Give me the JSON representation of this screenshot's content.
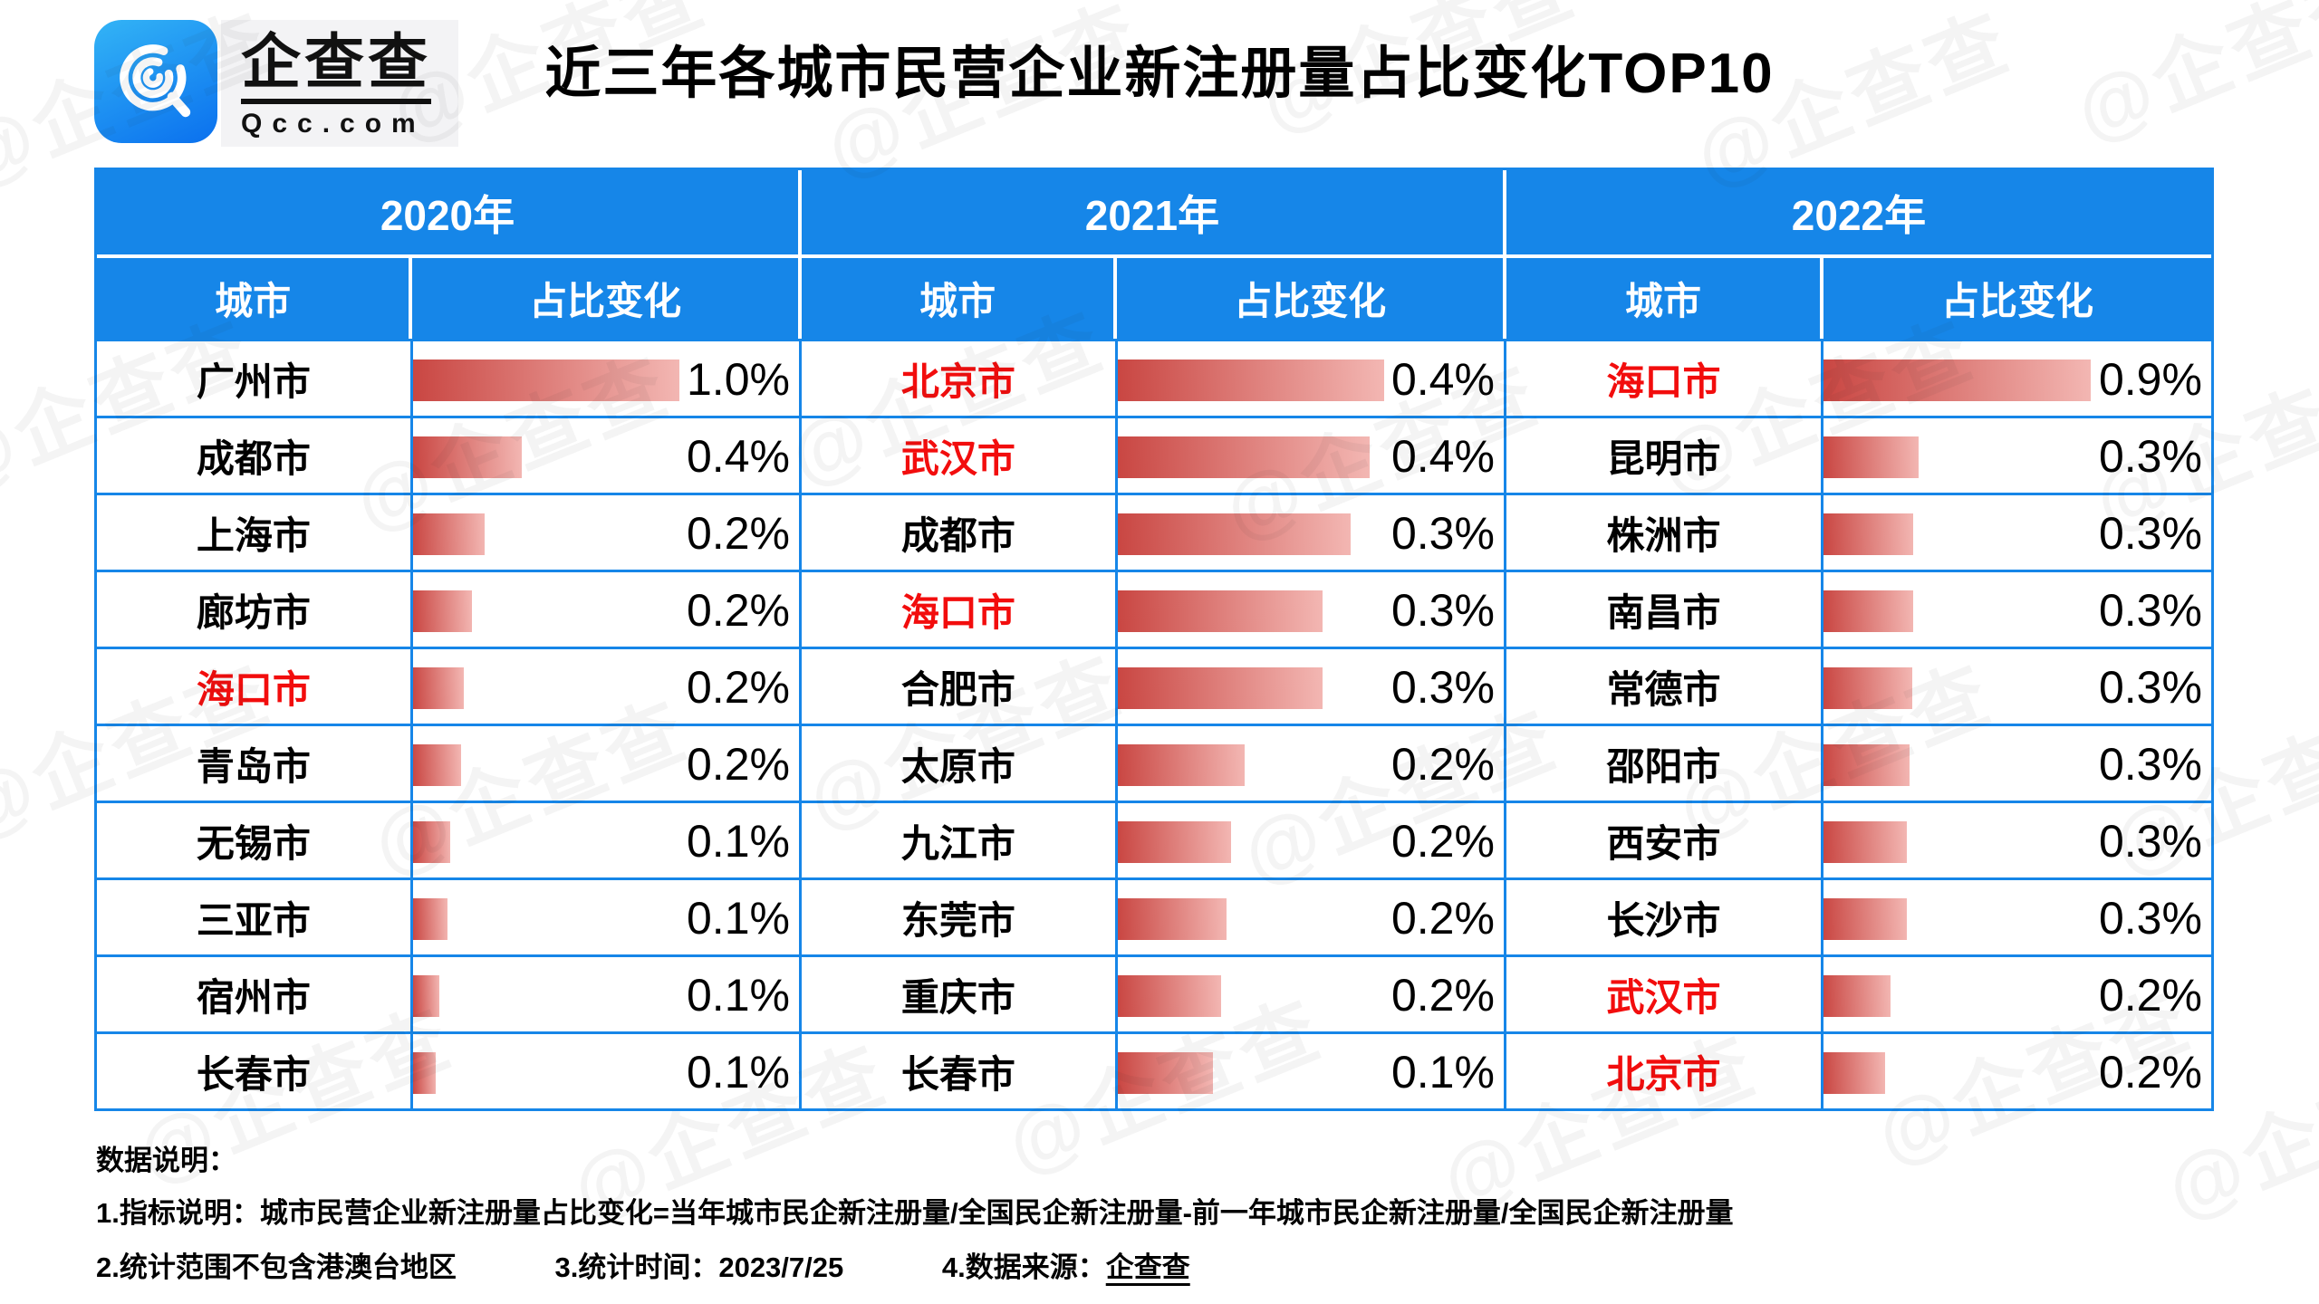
{
  "title": "近三年各城市民营企业新注册量占比变化TOP10",
  "brand": {
    "name": "企查查",
    "domain": "Qcc.com"
  },
  "watermark": {
    "text": "@企查查"
  },
  "colors": {
    "header_blue": "#1686e8",
    "bar_gradient_start": "#c94642",
    "bar_gradient_end": "#f3b7b3",
    "highlight_red": "#f20d0d"
  },
  "table": {
    "sub_headers": [
      "城市",
      "占比变化"
    ],
    "groups": [
      {
        "year": "2020年",
        "rows": [
          {
            "city": "广州市",
            "value": "1.0%",
            "red": false,
            "bar": 69
          },
          {
            "city": "成都市",
            "value": "0.4%",
            "red": false,
            "bar": 28.3
          },
          {
            "city": "上海市",
            "value": "0.2%",
            "red": false,
            "bar": 18.6
          },
          {
            "city": "廊坊市",
            "value": "0.2%",
            "red": false,
            "bar": 15.2
          },
          {
            "city": "海口市",
            "value": "0.2%",
            "red": true,
            "bar": 13.1
          },
          {
            "city": "青岛市",
            "value": "0.2%",
            "red": false,
            "bar": 12.4
          },
          {
            "city": "无锡市",
            "value": "0.1%",
            "red": false,
            "bar": 9.7
          },
          {
            "city": "三亚市",
            "value": "0.1%",
            "red": false,
            "bar": 9.0
          },
          {
            "city": "宿州市",
            "value": "0.1%",
            "red": false,
            "bar": 6.9
          },
          {
            "city": "长春市",
            "value": "0.1%",
            "red": false,
            "bar": 5.9
          }
        ]
      },
      {
        "year": "2021年",
        "rows": [
          {
            "city": "北京市",
            "value": "0.4%",
            "red": true,
            "bar": 69
          },
          {
            "city": "武汉市",
            "value": "0.4%",
            "red": true,
            "bar": 65.2
          },
          {
            "city": "成都市",
            "value": "0.3%",
            "red": false,
            "bar": 60.4
          },
          {
            "city": "海口市",
            "value": "0.3%",
            "red": true,
            "bar": 53.1
          },
          {
            "city": "合肥市",
            "value": "0.3%",
            "red": false,
            "bar": 53.1
          },
          {
            "city": "太原市",
            "value": "0.2%",
            "red": false,
            "bar": 32.8
          },
          {
            "city": "九江市",
            "value": "0.2%",
            "red": false,
            "bar": 29.3
          },
          {
            "city": "东莞市",
            "value": "0.2%",
            "red": false,
            "bar": 28.3
          },
          {
            "city": "重庆市",
            "value": "0.2%",
            "red": false,
            "bar": 26.9
          },
          {
            "city": "长春市",
            "value": "0.1%",
            "red": false,
            "bar": 24.8
          }
        ]
      },
      {
        "year": "2022年",
        "rows": [
          {
            "city": "海口市",
            "value": "0.9%",
            "red": true,
            "bar": 69
          },
          {
            "city": "昆明市",
            "value": "0.3%",
            "red": false,
            "bar": 24.5
          },
          {
            "city": "株洲市",
            "value": "0.3%",
            "red": false,
            "bar": 23.1
          },
          {
            "city": "南昌市",
            "value": "0.3%",
            "red": false,
            "bar": 23.1
          },
          {
            "city": "常德市",
            "value": "0.3%",
            "red": false,
            "bar": 22.8
          },
          {
            "city": "邵阳市",
            "value": "0.3%",
            "red": false,
            "bar": 22.1
          },
          {
            "city": "西安市",
            "value": "0.3%",
            "red": false,
            "bar": 21.4
          },
          {
            "city": "长沙市",
            "value": "0.3%",
            "red": false,
            "bar": 21.4
          },
          {
            "city": "武汉市",
            "value": "0.2%",
            "red": true,
            "bar": 17.3
          },
          {
            "city": "北京市",
            "value": "0.2%",
            "red": true,
            "bar": 15.9
          }
        ]
      }
    ]
  },
  "notes": {
    "heading": "数据说明：",
    "line1": "1.指标说明：城市民营企业新注册量占比变化=当年城市民企新注册量/全国民企新注册量-前一年城市民企新注册量/全国民企新注册量",
    "note2": "2.统计范围不包含港澳台地区",
    "note3": "3.统计时间：2023/7/25",
    "note4_prefix": "4.数据来源：",
    "note4_source": "企查查"
  },
  "chart_data": {
    "type": "bar",
    "title": "近三年各城市民营企业新注册量占比变化TOP10",
    "unit": "%",
    "ylabel": "占比变化",
    "series": [
      {
        "name": "2020年",
        "categories": [
          "广州市",
          "成都市",
          "上海市",
          "廊坊市",
          "海口市",
          "青岛市",
          "无锡市",
          "三亚市",
          "宿州市",
          "长春市"
        ],
        "values": [
          1.0,
          0.4,
          0.2,
          0.2,
          0.2,
          0.2,
          0.1,
          0.1,
          0.1,
          0.1
        ],
        "highlighted": [
          "海口市"
        ]
      },
      {
        "name": "2021年",
        "categories": [
          "北京市",
          "武汉市",
          "成都市",
          "海口市",
          "合肥市",
          "太原市",
          "九江市",
          "东莞市",
          "重庆市",
          "长春市"
        ],
        "values": [
          0.4,
          0.4,
          0.3,
          0.3,
          0.3,
          0.2,
          0.2,
          0.2,
          0.2,
          0.1
        ],
        "highlighted": [
          "北京市",
          "武汉市",
          "海口市"
        ]
      },
      {
        "name": "2022年",
        "categories": [
          "海口市",
          "昆明市",
          "株洲市",
          "南昌市",
          "常德市",
          "邵阳市",
          "西安市",
          "长沙市",
          "武汉市",
          "北京市"
        ],
        "values": [
          0.9,
          0.3,
          0.3,
          0.3,
          0.3,
          0.3,
          0.3,
          0.3,
          0.2,
          0.2
        ],
        "highlighted": [
          "海口市",
          "武汉市",
          "北京市"
        ]
      }
    ]
  }
}
